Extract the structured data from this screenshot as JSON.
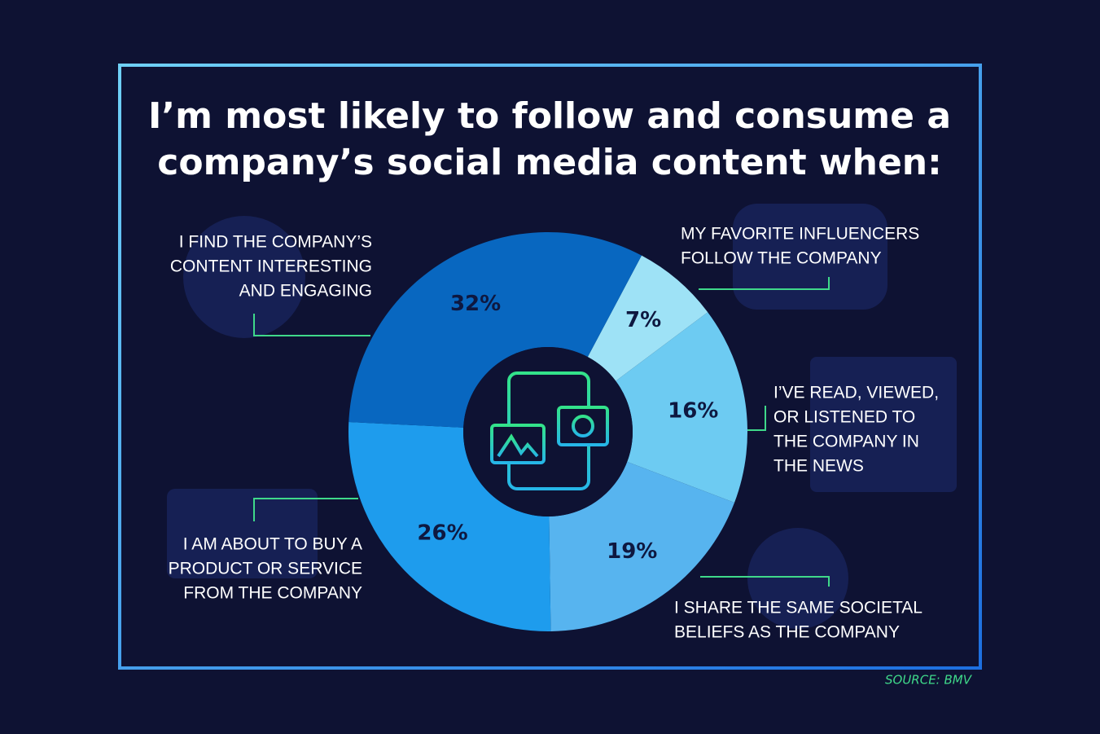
{
  "chart_data": {
    "type": "donut",
    "title": [
      "I’m most likely to follow and consume a",
      "company’s social media content when:"
    ],
    "categories": [
      [
        "MY FAVORITE INFLUENCERS",
        "FOLLOW THE COMPANY"
      ],
      [
        "I’VE READ, VIEWED,",
        "OR LISTENED TO",
        "THE COMPANY IN",
        "THE NEWS"
      ],
      [
        "I SHARE THE SAME SOCIETAL",
        "BELIEFS AS THE COMPANY"
      ],
      [
        "I AM ABOUT TO BUY A",
        "PRODUCT OR SERVICE",
        "FROM THE COMPANY"
      ],
      [
        "I FIND THE COMPANY’S",
        "CONTENT INTERESTING",
        "AND ENGAGING"
      ]
    ],
    "values": [
      7,
      16,
      19,
      26,
      32
    ],
    "value_labels": [
      "7%",
      "16%",
      "19%",
      "26%",
      "32%"
    ],
    "colors": [
      "#9ee2f6",
      "#6dcbf2",
      "#57b4ef",
      "#1e9ced",
      "#0867c0"
    ],
    "source": "SOURCE: BMV"
  }
}
